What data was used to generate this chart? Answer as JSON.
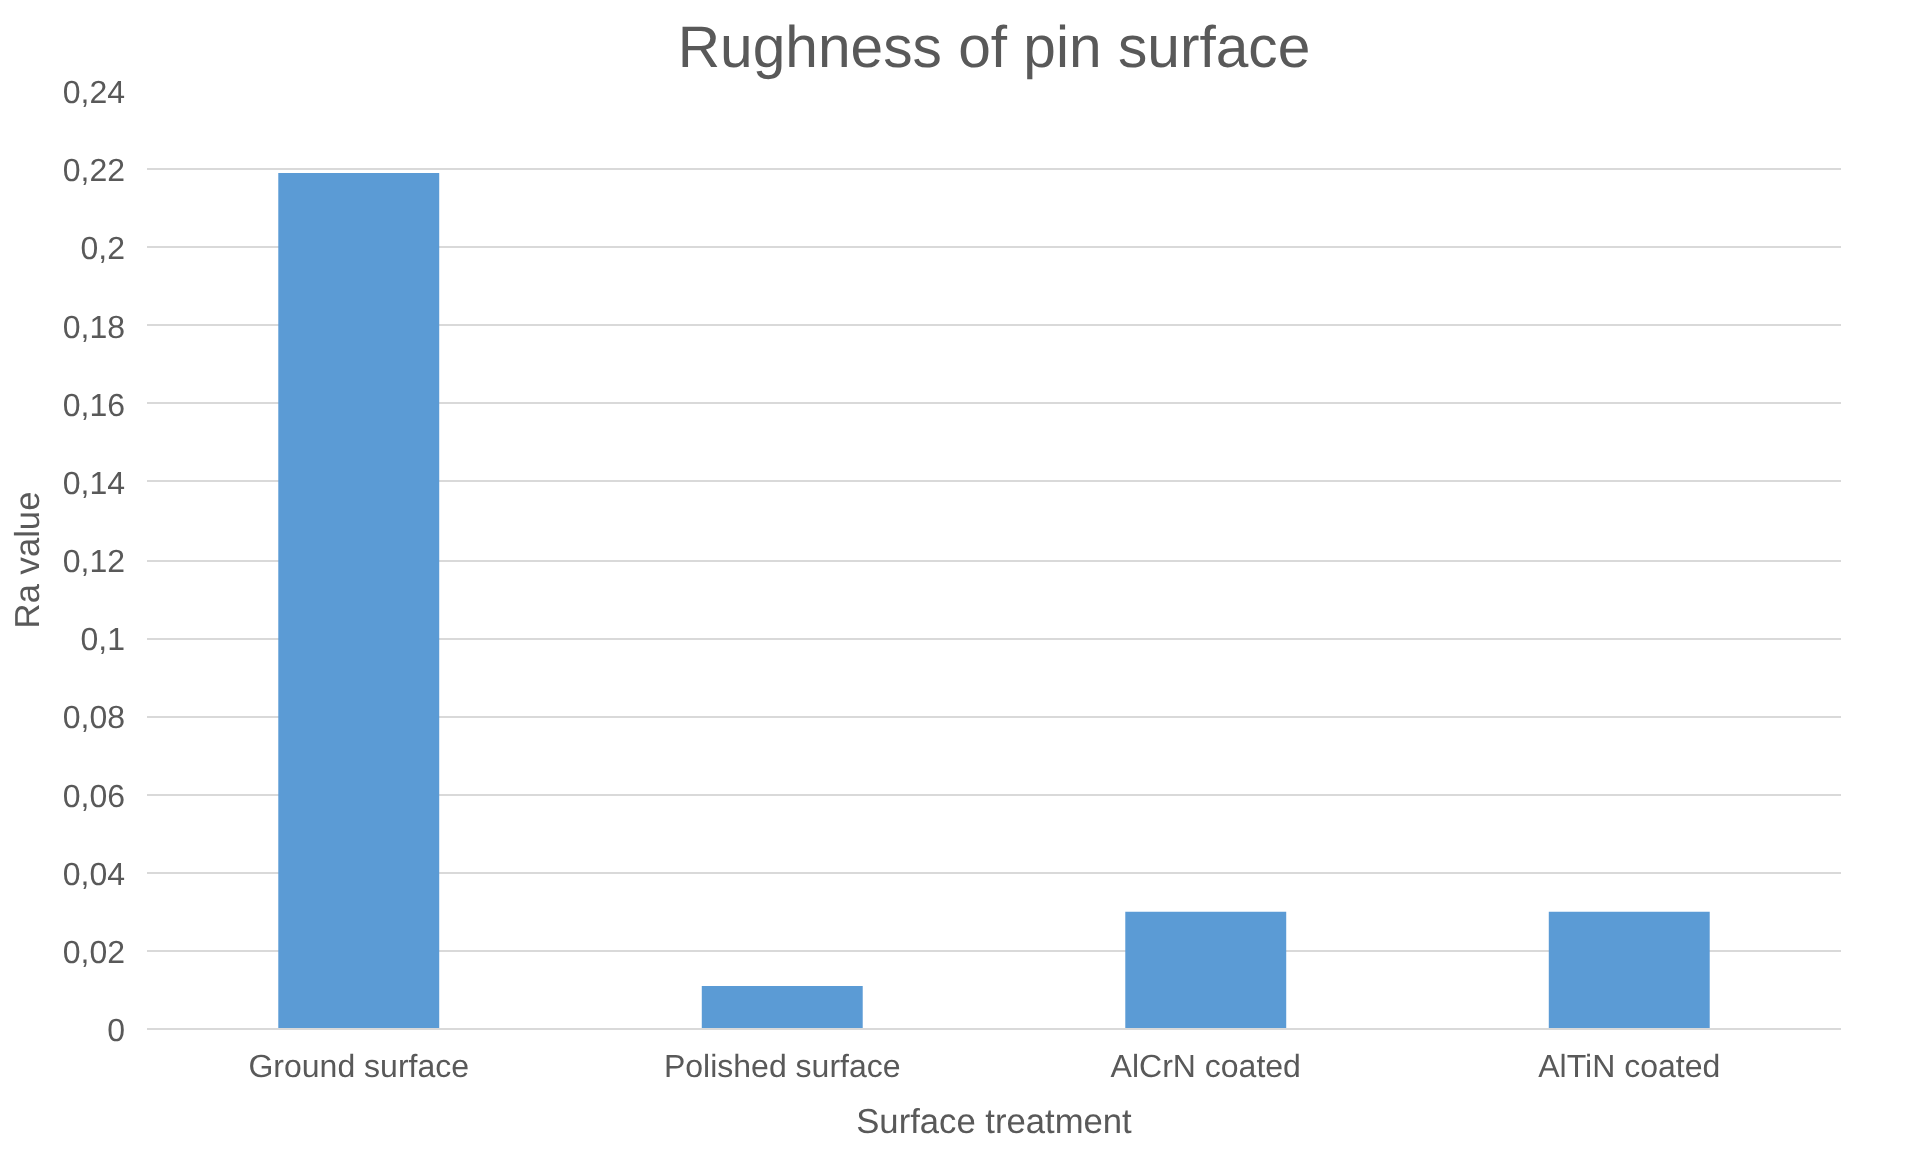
{
  "chart_data": {
    "type": "bar",
    "title": "Rughness of pin surface",
    "xlabel": "Surface treatment",
    "ylabel": "Ra value",
    "categories": [
      "Ground surface",
      "Polished surface",
      "AlCrN coated",
      "AlTiN coated"
    ],
    "values": [
      0.219,
      0.011,
      0.03,
      0.03
    ],
    "color": "#5b9bd5",
    "ylim": [
      0,
      0.24
    ],
    "yticks": [
      {
        "value": 0,
        "label": "0"
      },
      {
        "value": 0.02,
        "label": "0,02"
      },
      {
        "value": 0.04,
        "label": "0,04"
      },
      {
        "value": 0.06,
        "label": "0,06"
      },
      {
        "value": 0.08,
        "label": "0,08"
      },
      {
        "value": 0.1,
        "label": "0,1"
      },
      {
        "value": 0.12,
        "label": "0,12"
      },
      {
        "value": 0.14,
        "label": "0,14"
      },
      {
        "value": 0.16,
        "label": "0,16"
      },
      {
        "value": 0.18,
        "label": "0,18"
      },
      {
        "value": 0.2,
        "label": "0,2"
      },
      {
        "value": 0.22,
        "label": "0,22"
      },
      {
        "value": 0.24,
        "label": "0,24"
      }
    ],
    "grid": "y"
  }
}
